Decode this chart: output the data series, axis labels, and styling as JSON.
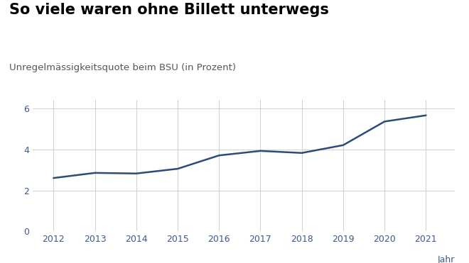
{
  "title": "So viele waren ohne Billett unterwegs",
  "subtitle": "Unregelmässigkeitsquote beim BSU (in Prozent)",
  "xlabel": "Jahr",
  "years": [
    2012,
    2013,
    2014,
    2015,
    2016,
    2017,
    2018,
    2019,
    2020,
    2021
  ],
  "values": [
    2.6,
    2.85,
    2.82,
    3.05,
    3.7,
    3.92,
    3.82,
    4.2,
    5.35,
    5.65
  ],
  "ylim": [
    0,
    6.4
  ],
  "yticks": [
    0,
    2,
    4,
    6
  ],
  "xlim": [
    2011.5,
    2021.7
  ],
  "line_color": "#2e4a7a",
  "line_width": 1.8,
  "grid_color": "#d0d0d0",
  "background_color": "#ffffff",
  "title_color": "#000000",
  "subtitle_color": "#555555",
  "axis_label_color": "#3a5a8c",
  "tick_label_color": "#3a5a8c",
  "title_fontsize": 15,
  "subtitle_fontsize": 9.5,
  "xlabel_fontsize": 9,
  "tick_fontsize": 9
}
